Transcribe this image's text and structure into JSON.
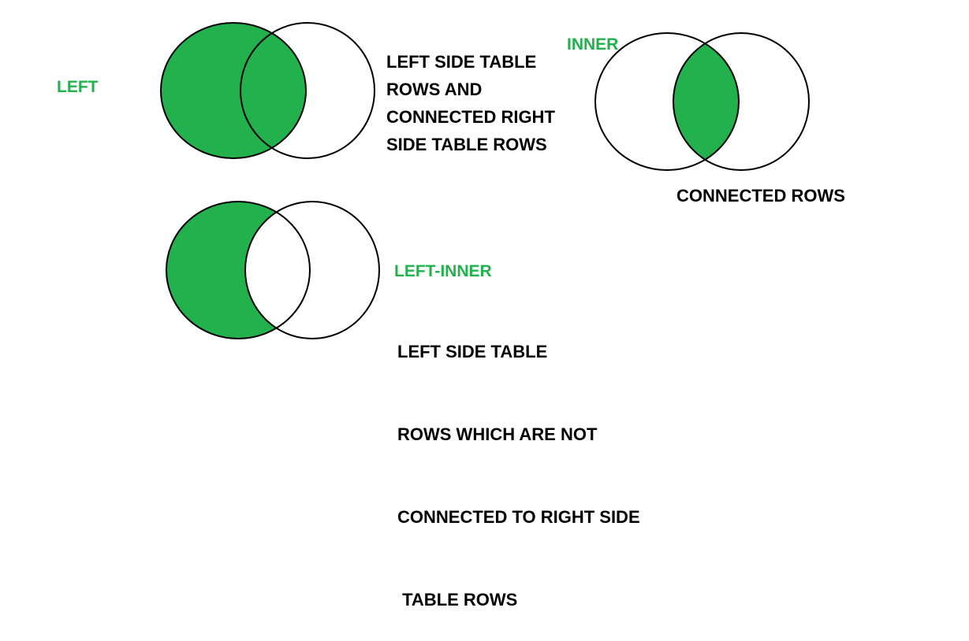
{
  "colors": {
    "fill": "#22b14c",
    "stroke": "#000000",
    "label": "#22b14c",
    "text": "#000000"
  },
  "left_join": {
    "label": "LEFT",
    "description": [
      "LEFT SIDE TABLE",
      "ROWS AND",
      "CONNECTED RIGHT",
      "SIDE TABLE ROWS"
    ]
  },
  "inner_join": {
    "label": "INNER",
    "description": [
      "CONNECTED ROWS"
    ]
  },
  "left_inner_join": {
    "label": "LEFT-INNER",
    "description": [
      "LEFT SIDE TABLE",
      "ROWS WHICH ARE NOT",
      "CONNECTED TO RIGHT SIDE",
      " TABLE ROWS"
    ]
  }
}
